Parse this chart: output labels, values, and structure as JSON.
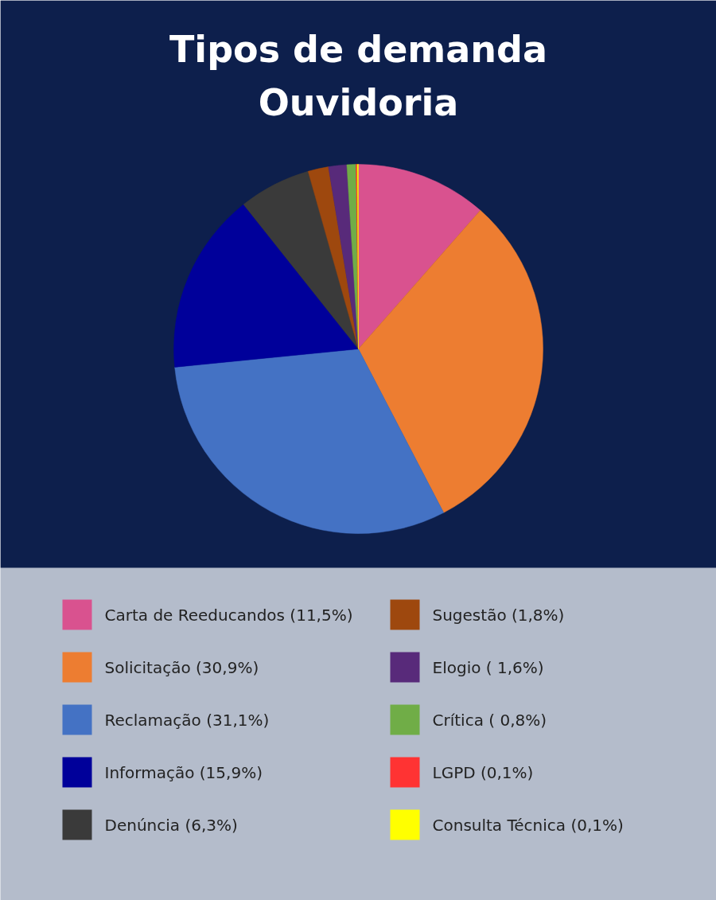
{
  "chart_data": {
    "type": "pie",
    "title": "Tipos de demanda\nOuvidoria",
    "categories": [
      "Carta de Reeducandos (11,5%)",
      "Solicitação (30,9%)",
      "Reclamação (31,1%)",
      "Informação (15,9%)",
      "Denúncia (6,3%)",
      "Sugestão (1,8%)",
      "Elogio ( 1,6%)",
      "Crítica ( 0,8%)",
      "LGPD  (0,1%)",
      "Consulta Técnica  (0,1%)"
    ],
    "values": [
      11.5,
      30.9,
      31.1,
      15.9,
      6.3,
      1.8,
      1.6,
      0.8,
      0.1,
      0.1
    ],
    "colors": [
      "#d9528f",
      "#ed7d31",
      "#4472c4",
      "#00009a",
      "#3a3a3a",
      "#9e480e",
      "#582a7a",
      "#70ad47",
      "#ff3333",
      "#ffff00"
    ],
    "legend": "bottom"
  }
}
